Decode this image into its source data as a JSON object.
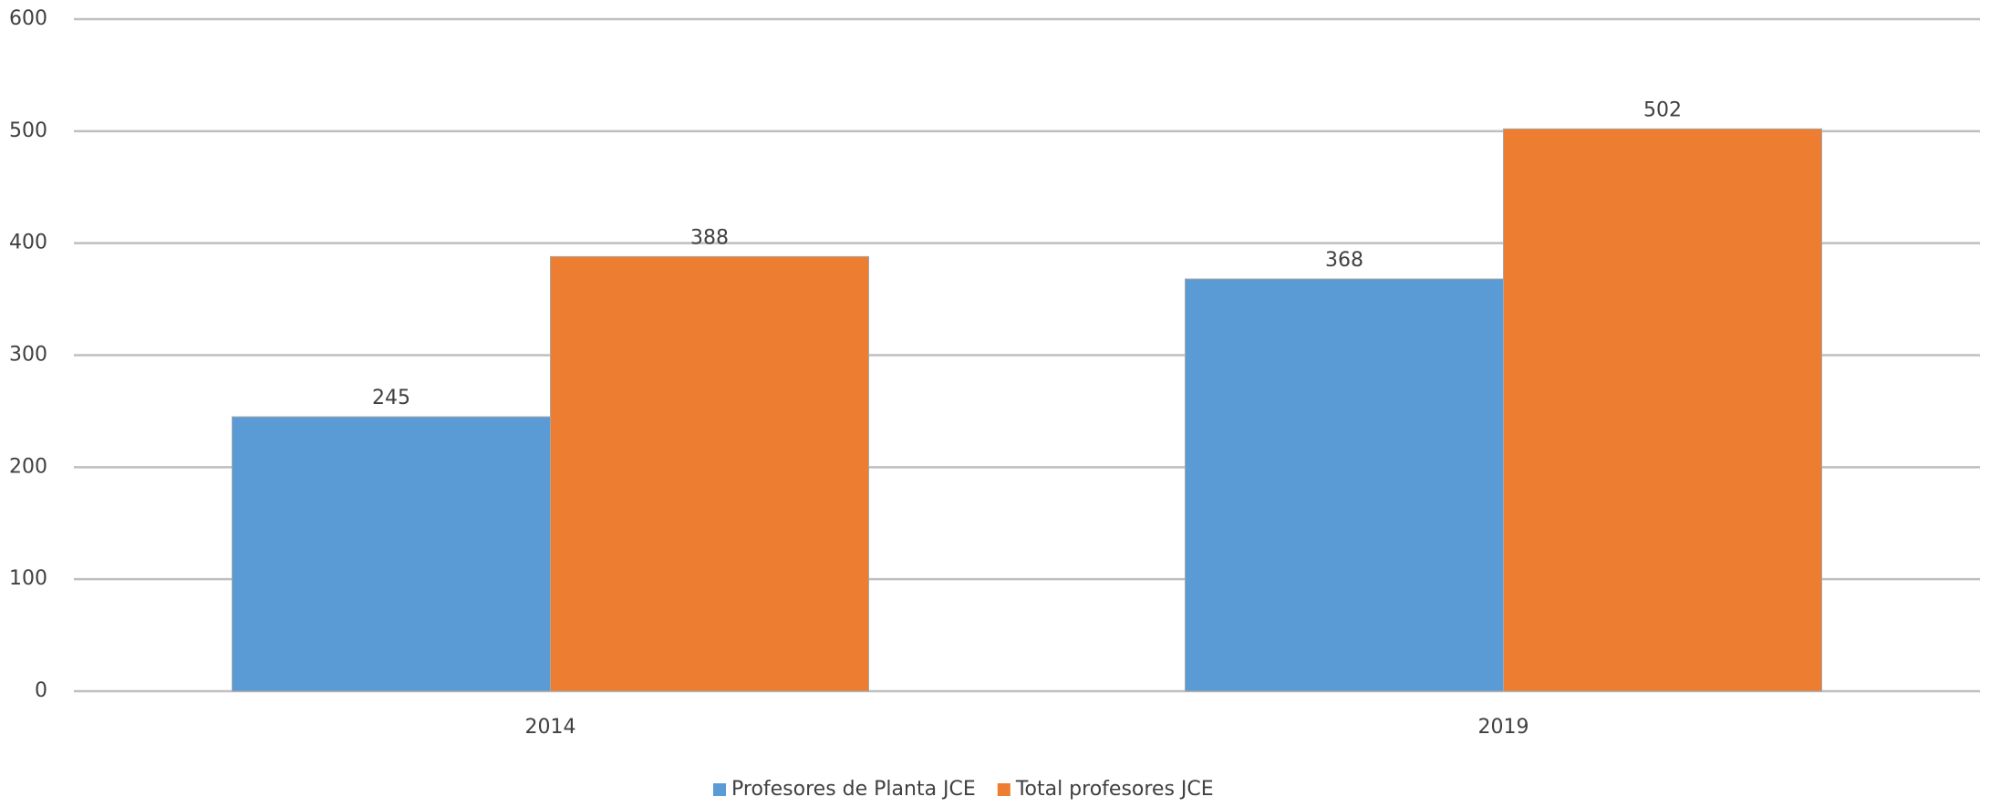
{
  "chart_data": {
    "type": "bar",
    "categories": [
      "2014",
      "2019"
    ],
    "series": [
      {
        "name": "Profesores de Planta JCE",
        "color": "#5b9bd5",
        "values": [
          245,
          368
        ]
      },
      {
        "name": "Total profesores JCE",
        "color": "#ed7d31",
        "values": [
          388,
          502
        ]
      }
    ],
    "ylim": [
      0,
      600
    ],
    "yticks": [
      0,
      100,
      200,
      300,
      400,
      500,
      600
    ],
    "grid": true,
    "legend": "bottom"
  }
}
